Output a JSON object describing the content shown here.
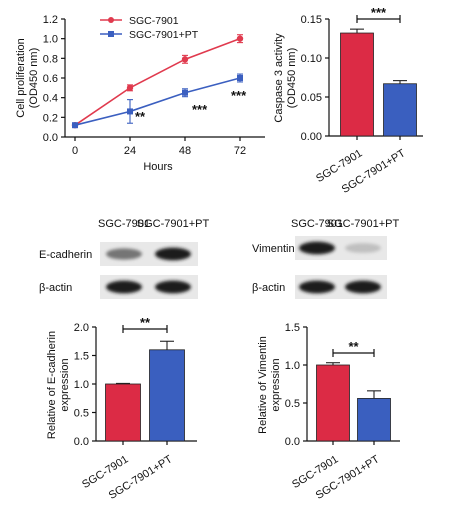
{
  "chart_data": [
    {
      "type": "line",
      "panel": "proliferation",
      "ylabel_lines": [
        "Cell proliferation",
        "(OD450 nm)"
      ],
      "xlabel": "Hours",
      "x": [
        0,
        24,
        48,
        72
      ],
      "xticks": [
        "0",
        "24",
        "48",
        "72"
      ],
      "ylim": [
        0,
        1.2
      ],
      "yticks": [
        "0.0",
        "0.2",
        "0.4",
        "0.6",
        "0.8",
        "1.0",
        "1.2"
      ],
      "series": [
        {
          "name": "SGC-7901",
          "color": "#e03a4e",
          "marker": "circle",
          "values": [
            0.12,
            0.5,
            0.79,
            1.0
          ],
          "errors": [
            0.02,
            0.03,
            0.04,
            0.04
          ]
        },
        {
          "name": "SGC-7901+PT",
          "color": "#3b5fc0",
          "marker": "square",
          "values": [
            0.12,
            0.26,
            0.45,
            0.6
          ],
          "errors": [
            0.02,
            0.12,
            0.04,
            0.04
          ]
        }
      ],
      "annotations": [
        {
          "x": 24,
          "text": "**"
        },
        {
          "x": 48,
          "text": "***"
        },
        {
          "x": 72,
          "text": "***"
        }
      ],
      "grid": false,
      "legend": "top-left"
    },
    {
      "type": "bar",
      "panel": "caspase3",
      "ylabel_lines": [
        "Caspase 3 activity",
        "(OD450 nm)"
      ],
      "categories": [
        "SGC-7901",
        "SGC-7901+PT"
      ],
      "values": [
        0.132,
        0.067
      ],
      "errors": [
        0.005,
        0.004
      ],
      "colors": [
        "#dc2b45",
        "#3a5fbf"
      ],
      "ylim": [
        0,
        0.15
      ],
      "yticks": [
        "0.00",
        "0.05",
        "0.10",
        "0.15"
      ],
      "significance": "***"
    },
    {
      "type": "bar",
      "panel": "ecadherin",
      "ylabel_lines": [
        "Relative of E-cadherin",
        "expression"
      ],
      "categories": [
        "SGC-7901",
        "SGC-7901+PT"
      ],
      "values": [
        1.0,
        1.6
      ],
      "errors": [
        0.01,
        0.15
      ],
      "colors": [
        "#dc2b45",
        "#3a5fbf"
      ],
      "ylim": [
        0,
        2.0
      ],
      "yticks": [
        "0.0",
        "0.5",
        "1.0",
        "1.5",
        "2.0"
      ],
      "significance": "**"
    },
    {
      "type": "bar",
      "panel": "vimentin",
      "ylabel_lines": [
        "Relative of Vimentin",
        "expression"
      ],
      "categories": [
        "SGC-7901",
        "SGC-7901+PT"
      ],
      "values": [
        1.0,
        0.56
      ],
      "errors": [
        0.03,
        0.1
      ],
      "colors": [
        "#dc2b45",
        "#3a5fbf"
      ],
      "ylim": [
        0,
        1.5
      ],
      "yticks": [
        "0.0",
        "0.5",
        "1.0",
        "1.5"
      ],
      "significance": "**"
    }
  ],
  "blots": [
    {
      "panel": "ecadherin",
      "headers": [
        "SGC-7901",
        "SGC-7901+PT"
      ],
      "rows": [
        {
          "label": "E-cadherin",
          "intensity": [
            0.55,
            0.95
          ]
        },
        {
          "label": "β-actin",
          "intensity": [
            0.95,
            0.95
          ]
        }
      ]
    },
    {
      "panel": "vimentin",
      "headers": [
        "SGC-7901",
        "SGC-7901+PT"
      ],
      "rows": [
        {
          "label": "Vimentin",
          "intensity": [
            0.95,
            0.2
          ]
        },
        {
          "label": "β-actin",
          "intensity": [
            0.95,
            0.95
          ]
        }
      ]
    }
  ]
}
